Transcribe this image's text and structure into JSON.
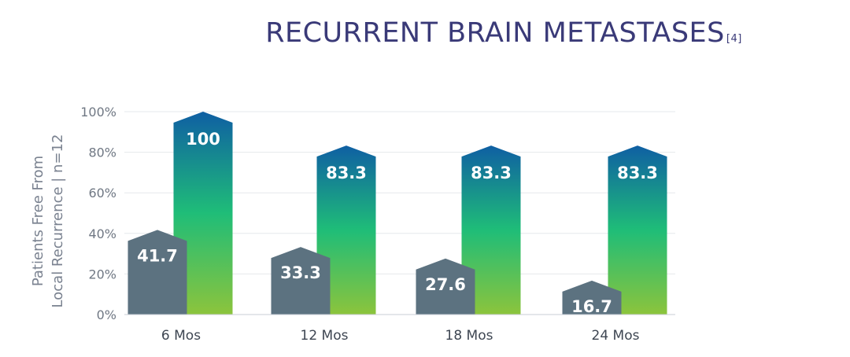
{
  "chart_data": {
    "type": "bar",
    "title": "RECURRENT BRAIN METASTASES",
    "title_ref": "[4]",
    "ylabel_line1": "Patients Free From",
    "ylabel_line2": "Local Recurrence  |  n=12",
    "categories": [
      "6 Mos",
      "12 Mos",
      "18 Mos",
      "24 Mos"
    ],
    "series": [
      {
        "values": [
          41.7,
          33.3,
          27.6,
          16.7
        ],
        "color": "#5c7280"
      },
      {
        "values": [
          100,
          83.3,
          83.3,
          83.3
        ],
        "color_top": "#0f5fa3",
        "color_mid": "#1fbd78",
        "color_bottom": "#8cc43c"
      }
    ],
    "value_labels": [
      [
        "41.7",
        "33.3",
        "27.6",
        "16.7"
      ],
      [
        "100",
        "83.3",
        "83.3",
        "83.3"
      ]
    ],
    "yticks": [
      "0%",
      "20%",
      "40%",
      "60%",
      "80%",
      "100%"
    ],
    "ylim": [
      0,
      100
    ],
    "grid": true
  }
}
